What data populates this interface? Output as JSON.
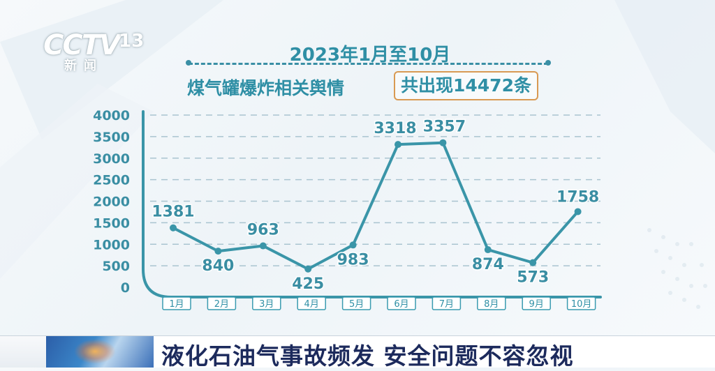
{
  "logo": {
    "brand": "CCTV",
    "channel_number": "13",
    "channel_name": "新闻"
  },
  "header": {
    "period": "2023年1月至10月",
    "topic": "煤气罐爆炸相关舆情",
    "total_badge": "共出现14472条"
  },
  "chart_data": {
    "type": "line",
    "title": "2023年1月至10月 煤气罐爆炸相关舆情 共出现14472条",
    "xlabel": "",
    "ylabel": "",
    "categories": [
      "1月",
      "2月",
      "3月",
      "4月",
      "5月",
      "6月",
      "7月",
      "8月",
      "9月",
      "10月"
    ],
    "values": [
      1381,
      840,
      963,
      425,
      983,
      3318,
      3357,
      874,
      573,
      1758
    ],
    "value_labels": [
      "1381",
      "840",
      "963",
      "425",
      "983",
      "3318",
      "3357",
      "874",
      "573",
      "1758"
    ],
    "ylim": [
      0,
      4000
    ],
    "yticks": [
      0,
      500,
      1000,
      1500,
      2000,
      2500,
      3000,
      3500,
      4000
    ],
    "ytick_labels": [
      "0",
      "500",
      "1000",
      "1500",
      "2000",
      "2500",
      "3000",
      "3500",
      "4000"
    ],
    "grid": true,
    "line_color": "#3a95a8",
    "label_color": "#3a8ea3",
    "month_box_color": "#3a9bb0"
  },
  "bottom_bar": {
    "headline": "液化石油气事故频发 安全问题不容忽视"
  }
}
